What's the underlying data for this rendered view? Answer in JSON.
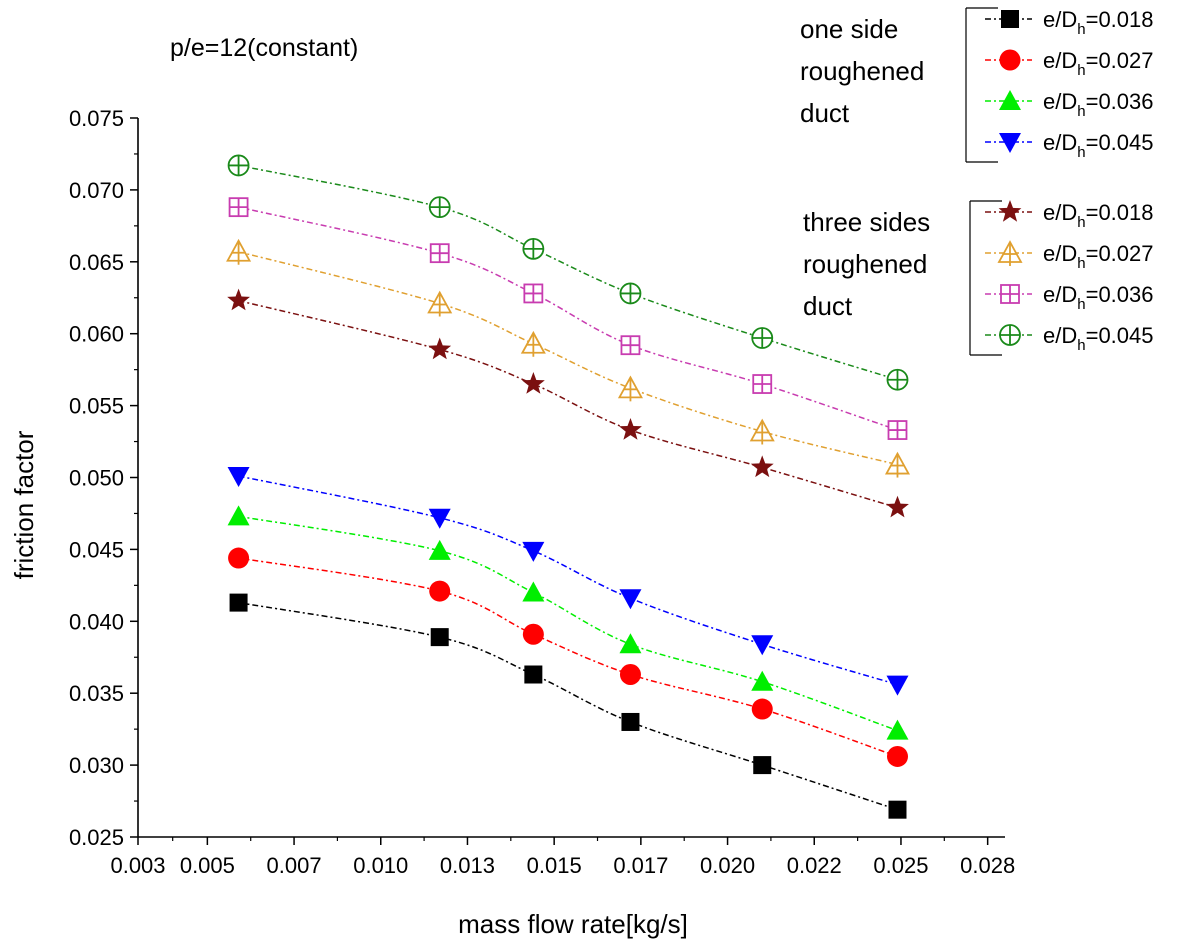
{
  "chart_data": {
    "type": "line",
    "title": "",
    "annotation": "p/e=12(constant)",
    "xlabel": "mass flow rate[kg/s]",
    "ylabel": "friction factor",
    "xlim": [
      0.003,
      0.028
    ],
    "ylim": [
      0.025,
      0.075
    ],
    "xticks": [
      0.003,
      0.005,
      0.0075,
      0.01,
      0.0125,
      0.015,
      0.0175,
      0.02,
      0.0225,
      0.025,
      0.0275
    ],
    "xtick_labels": [
      "0.003",
      "0.005",
      "0.007",
      "0.010",
      "0.013",
      "0.015",
      "0.017",
      "0.020",
      "0.022",
      "0.025",
      "0.028"
    ],
    "yticks": [
      0.025,
      0.03,
      0.035,
      0.04,
      0.045,
      0.05,
      0.055,
      0.06,
      0.065,
      0.07,
      0.075
    ],
    "ytick_labels": [
      "0.025",
      "0.030",
      "0.035",
      "0.040",
      "0.045",
      "0.050",
      "0.055",
      "0.060",
      "0.065",
      "0.070",
      "0.075"
    ],
    "grid": false,
    "legend_position": "top-right",
    "legend_groups": [
      {
        "title_lines": [
          "one side",
          "roughened",
          "duct"
        ],
        "series": [
          0,
          1,
          2,
          3
        ]
      },
      {
        "title_lines": [
          "three sides",
          "roughened",
          "duct"
        ],
        "series": [
          4,
          5,
          6,
          7
        ]
      }
    ],
    "x": [
      0.0059,
      0.0117,
      0.0144,
      0.0172,
      0.021,
      0.0249
    ],
    "series": [
      {
        "name": "e/Dh=0.018",
        "label_main": "e/D",
        "label_sub": "h",
        "label_tail": "=0.018",
        "color": "#000000",
        "marker": "filled-square",
        "values": [
          0.0413,
          0.0389,
          0.0363,
          0.033,
          0.03,
          0.0269
        ]
      },
      {
        "name": "e/Dh=0.027",
        "label_main": "e/D",
        "label_sub": "h",
        "label_tail": "=0.027",
        "color": "#ff0000",
        "marker": "filled-circle",
        "values": [
          0.0444,
          0.0421,
          0.0391,
          0.0363,
          0.0339,
          0.0306
        ]
      },
      {
        "name": "e/Dh=0.036",
        "label_main": "e/D",
        "label_sub": "h",
        "label_tail": "=0.036",
        "color": "#00ee00",
        "marker": "filled-triangle-up",
        "values": [
          0.0473,
          0.0449,
          0.042,
          0.0384,
          0.0358,
          0.0324
        ]
      },
      {
        "name": "e/Dh=0.045",
        "label_main": "e/D",
        "label_sub": "h",
        "label_tail": "=0.045",
        "color": "#0000ff",
        "marker": "filled-triangle-down",
        "values": [
          0.0501,
          0.0472,
          0.0449,
          0.0416,
          0.0384,
          0.0356
        ]
      },
      {
        "name": "e/Dh=0.018",
        "label_main": "e/D",
        "label_sub": "h",
        "label_tail": "=0.018",
        "color": "#7b1010",
        "marker": "filled-star",
        "values": [
          0.0623,
          0.0589,
          0.0565,
          0.0533,
          0.0507,
          0.0479
        ]
      },
      {
        "name": "e/Dh=0.027",
        "label_main": "e/D",
        "label_sub": "h",
        "label_tail": "=0.027",
        "color": "#e0a030",
        "marker": "open-triangle-cross",
        "values": [
          0.0657,
          0.0621,
          0.0593,
          0.0562,
          0.0532,
          0.0509
        ]
      },
      {
        "name": "e/Dh=0.036",
        "label_main": "e/D",
        "label_sub": "h",
        "label_tail": "=0.036",
        "color": "#c83cb0",
        "marker": "open-square-cross",
        "values": [
          0.0688,
          0.0656,
          0.0628,
          0.0592,
          0.0565,
          0.0533
        ]
      },
      {
        "name": "e/Dh=0.045",
        "label_main": "e/D",
        "label_sub": "h",
        "label_tail": "=0.045",
        "color": "#1a8a1a",
        "marker": "open-circle-cross",
        "values": [
          0.0717,
          0.0688,
          0.0659,
          0.0628,
          0.0597,
          0.0568
        ]
      }
    ]
  }
}
